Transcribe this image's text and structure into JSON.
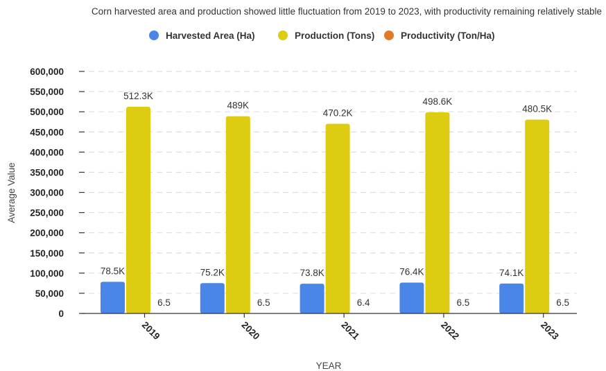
{
  "chart_data": {
    "type": "bar",
    "title": "Corn harvested area and production showed little fluctuation from 2019 to 2023, with productivity remaining relatively stable",
    "xlabel": "YEAR",
    "ylabel": "Average Value",
    "categories": [
      "2019",
      "2020",
      "2021",
      "2022",
      "2023"
    ],
    "ylim": [
      0,
      600000
    ],
    "yticks": [
      0,
      50000,
      100000,
      150000,
      200000,
      250000,
      300000,
      350000,
      400000,
      450000,
      500000,
      550000,
      600000
    ],
    "ytick_labels": [
      "0",
      "50,000",
      "100,000",
      "150,000",
      "200,000",
      "250,000",
      "300,000",
      "350,000",
      "400,000",
      "450,000",
      "500,000",
      "550,000",
      "600,000"
    ],
    "grid": true,
    "legend_position": "top",
    "series": [
      {
        "name": "Harvested Area (Ha)",
        "color": "#4a86e8",
        "values": [
          78500,
          75200,
          73800,
          76400,
          74100
        ],
        "labels": [
          "78.5K",
          "75.2K",
          "73.8K",
          "76.4K",
          "74.1K"
        ]
      },
      {
        "name": "Production (Tons)",
        "color": "#ddcc11",
        "values": [
          512300,
          489000,
          470200,
          498600,
          480500
        ],
        "labels": [
          "512.3K",
          "489K",
          "470.2K",
          "498.6K",
          "480.5K"
        ]
      },
      {
        "name": "Productivity (Ton/Ha)",
        "color": "#e07b2c",
        "values": [
          6.5,
          6.5,
          6.4,
          6.5,
          6.5
        ],
        "labels": [
          "6.5",
          "6.5",
          "6.4",
          "6.5",
          "6.5"
        ]
      }
    ]
  }
}
